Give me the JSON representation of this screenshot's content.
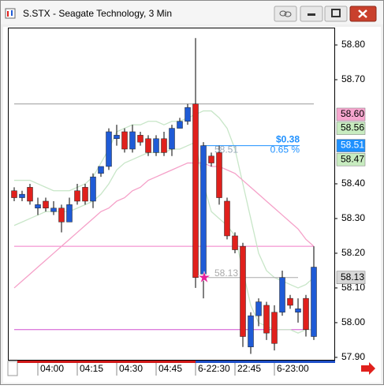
{
  "window": {
    "title": "S.STX - Seagate Technology, 3 Min"
  },
  "chart_data": {
    "type": "candlestick",
    "categories": [
      null,
      null,
      null,
      "04:00",
      null,
      null,
      null,
      null,
      "04:15",
      null,
      null,
      null,
      null,
      "04:30",
      null,
      null,
      null,
      null,
      "04:45",
      null,
      null,
      null,
      null,
      "6-22:30",
      null,
      null,
      null,
      null,
      "22:45",
      null,
      null,
      null,
      null,
      "6-23:00",
      null,
      null,
      null,
      null,
      null
    ],
    "open": [
      58.38,
      58.36,
      58.39,
      58.33,
      58.35,
      58.32,
      58.33,
      58.29,
      58.38,
      58.39,
      58.35,
      58.43,
      58.45,
      58.53,
      58.55,
      58.5,
      58.54,
      58.53,
      58.49,
      58.53,
      58.5,
      58.56,
      58.58,
      58.63,
      58.14,
      58.48,
      58.49,
      58.35,
      58.25,
      58.22,
      57.93,
      58.02,
      58.05,
      58.03,
      58.03,
      58.07,
      58.03,
      58.07,
      57.96
    ],
    "high": [
      58.39,
      58.38,
      58.4,
      58.36,
      58.36,
      58.35,
      58.34,
      58.36,
      58.4,
      58.4,
      58.43,
      58.45,
      58.56,
      58.57,
      58.56,
      58.57,
      58.55,
      58.54,
      58.54,
      58.55,
      58.57,
      58.59,
      58.63,
      58.82,
      58.52,
      58.49,
      58.51,
      58.36,
      58.26,
      58.23,
      58.03,
      58.07,
      58.06,
      58.05,
      58.15,
      58.08,
      58.07,
      58.08,
      58.22
    ],
    "low": [
      58.35,
      58.35,
      58.34,
      58.31,
      58.32,
      58.31,
      58.26,
      58.29,
      58.34,
      58.34,
      58.33,
      58.42,
      58.44,
      58.51,
      58.49,
      58.49,
      58.51,
      58.48,
      58.48,
      58.48,
      58.48,
      58.56,
      58.57,
      58.1,
      58.07,
      58.45,
      58.34,
      58.24,
      58.2,
      57.93,
      57.91,
      57.99,
      57.95,
      57.92,
      58.02,
      58.04,
      58.0,
      57.96,
      57.95
    ],
    "close": [
      58.36,
      58.37,
      58.35,
      58.34,
      58.33,
      58.33,
      58.29,
      58.34,
      58.35,
      58.35,
      58.42,
      58.45,
      58.55,
      58.54,
      58.5,
      58.55,
      58.52,
      58.49,
      58.53,
      58.49,
      58.56,
      58.58,
      58.62,
      58.13,
      58.51,
      58.46,
      58.36,
      58.25,
      58.21,
      57.96,
      58.02,
      58.06,
      57.97,
      57.94,
      58.13,
      58.05,
      58.04,
      57.98,
      58.16
    ],
    "up_color": "#1f5bd6",
    "down_color": "#e0201c",
    "overlays": [
      {
        "color": "#c8e6c8",
        "values": [
          58.28,
          58.29,
          58.3,
          58.31,
          58.32,
          58.32,
          58.32,
          58.32,
          58.33,
          58.34,
          58.35,
          58.37,
          58.4,
          58.44,
          58.46,
          58.47,
          58.48,
          58.49,
          58.49,
          58.49,
          58.5,
          58.5,
          58.51,
          58.52,
          58.4,
          58.32,
          58.3,
          58.28,
          58.25,
          58.15,
          58.05,
          58.0,
          57.99,
          57.98,
          57.98,
          57.98,
          57.97,
          57.98,
          57.98
        ]
      },
      {
        "color": "#c8e6c8",
        "values": [
          58.41,
          58.41,
          58.41,
          58.4,
          58.39,
          58.38,
          58.38,
          58.38,
          58.39,
          58.4,
          58.42,
          58.46,
          58.5,
          58.55,
          58.56,
          58.57,
          58.57,
          58.58,
          58.58,
          58.57,
          58.58,
          58.58,
          58.59,
          58.6,
          58.61,
          58.61,
          58.59,
          58.56,
          58.5,
          58.4,
          58.3,
          58.2,
          58.15,
          58.13,
          58.12,
          58.11,
          58.1,
          58.11,
          58.13
        ]
      },
      {
        "color": "#f5a0c8",
        "values": [
          58.1,
          58.12,
          58.14,
          58.16,
          58.18,
          58.2,
          58.22,
          58.24,
          58.26,
          58.28,
          58.3,
          58.32,
          58.33,
          58.35,
          58.36,
          58.38,
          58.39,
          58.41,
          58.42,
          58.43,
          58.44,
          58.45,
          58.46,
          58.46,
          58.46,
          58.45,
          58.45,
          58.44,
          58.43,
          58.41,
          58.39,
          58.37,
          58.35,
          58.33,
          58.31,
          58.29,
          58.27,
          58.24,
          58.22
        ]
      }
    ],
    "levels": [
      {
        "value": 58.63,
        "color": "#9a9a9a"
      },
      {
        "value": 58.22,
        "color": "#f07cc8"
      },
      {
        "value": 57.98,
        "color": "#d050d0"
      }
    ],
    "measure": {
      "from": 58.13,
      "to": 58.51,
      "from_label": "58.13",
      "to_label": "58.51",
      "change_label": "$0.38",
      "pct_label": "0.65 %"
    },
    "price_flags": [
      {
        "value": 58.6,
        "label": "58.60",
        "color": "#f7a6cf",
        "text_color": "#000000"
      },
      {
        "value": 58.56,
        "label": "58.56",
        "color": "#c8ecc0",
        "text_color": "#000000"
      },
      {
        "value": 58.51,
        "label": "58.51",
        "color": "#1e90ff",
        "text_color": "#ffffff"
      },
      {
        "value": 58.47,
        "label": "58.47",
        "color": "#c8ecc0",
        "text_color": "#000000"
      },
      {
        "value": 58.13,
        "label": "58.13",
        "color": "#d8d8d8",
        "text_color": "#000000"
      }
    ],
    "ylim": [
      57.893,
      58.85
    ],
    "yticks": [
      {
        "value": 58.8,
        "label": "58.80"
      },
      {
        "value": 58.7,
        "label": "58.70"
      },
      {
        "value": 58.4,
        "label": "58.40"
      },
      {
        "value": 58.3,
        "label": "58.30"
      },
      {
        "value": 58.2,
        "label": "58.20"
      },
      {
        "value": 58.1,
        "label": "58.10"
      },
      {
        "value": 58.0,
        "label": "58.00"
      },
      {
        "value": 57.9,
        "label": "57.90"
      }
    ]
  }
}
